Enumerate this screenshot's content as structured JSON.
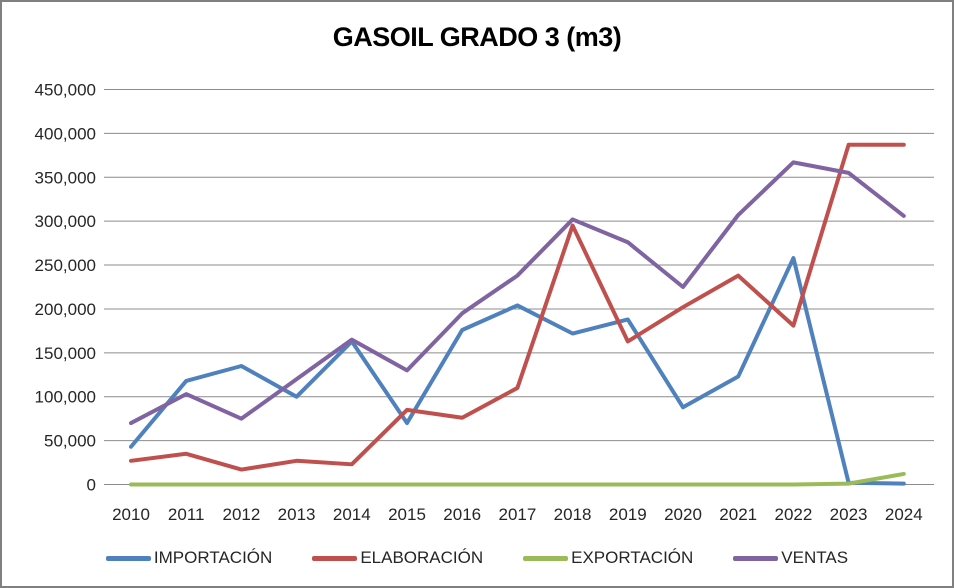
{
  "chart_data": {
    "type": "line",
    "title": "GASOIL GRADO 3 (m3)",
    "xlabel": "",
    "ylabel": "",
    "unit": "m3",
    "categories": [
      "2010",
      "2011",
      "2012",
      "2013",
      "2014",
      "2015",
      "2016",
      "2017",
      "2018",
      "2019",
      "2020",
      "2021",
      "2022",
      "2023",
      "2024"
    ],
    "series": [
      {
        "name": "IMPORTACIÓN",
        "color": "#4F81BD",
        "values": [
          43000,
          118000,
          135000,
          100000,
          163000,
          70000,
          176000,
          204000,
          172000,
          188000,
          88000,
          123000,
          258000,
          2000,
          1000
        ]
      },
      {
        "name": "ELABORACIÓN",
        "color": "#C0504D",
        "values": [
          27000,
          35000,
          17000,
          27000,
          23000,
          85000,
          76000,
          110000,
          295000,
          163000,
          202000,
          238000,
          181000,
          387000,
          387000
        ]
      },
      {
        "name": "EXPORTACIÓN",
        "color": "#9BBB59",
        "values": [
          0,
          0,
          0,
          0,
          0,
          0,
          0,
          0,
          0,
          0,
          0,
          0,
          0,
          1000,
          12000
        ]
      },
      {
        "name": "VENTAS",
        "color": "#8064A2",
        "values": [
          70000,
          103000,
          75000,
          120000,
          165000,
          130000,
          195000,
          238000,
          302000,
          276000,
          225000,
          307000,
          367000,
          355000,
          306000
        ]
      }
    ],
    "ylim": [
      0,
      450000
    ],
    "ytick_step": 50000,
    "ytick_labels": [
      "0",
      "50,000",
      "100,000",
      "150,000",
      "200,000",
      "250,000",
      "300,000",
      "350,000",
      "400,000",
      "450,000"
    ],
    "grid": true,
    "legend_position": "bottom",
    "style": {
      "border_color": "#808080",
      "gridline_color": "#8C8C8C",
      "axis_text_color": "#262626",
      "background": "#FFFFFF",
      "line_width": 4
    }
  }
}
